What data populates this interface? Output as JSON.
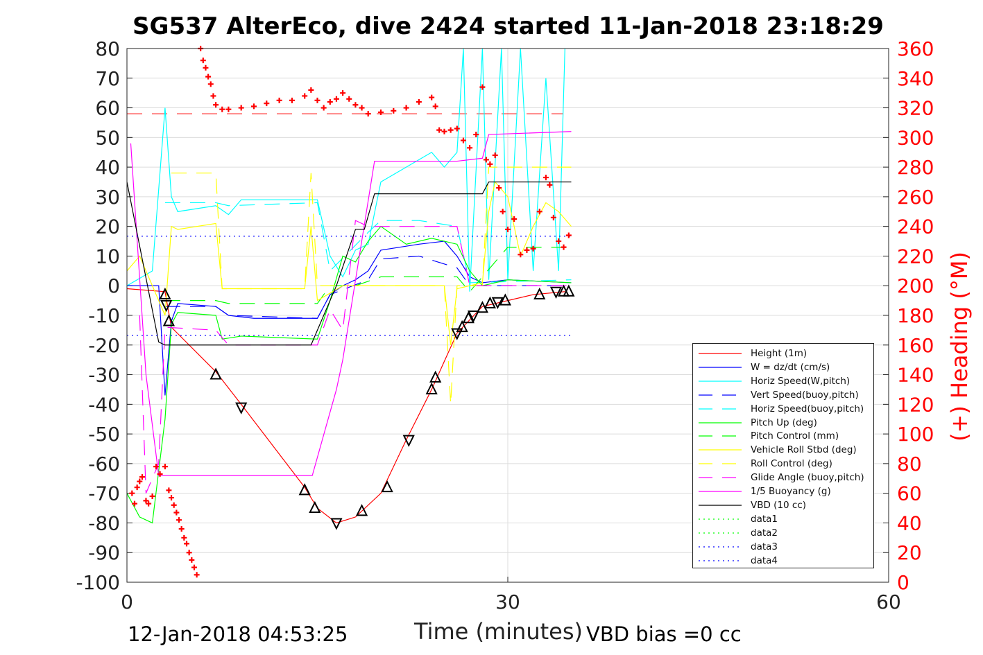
{
  "chart_data": {
    "type": "line",
    "title": "SG537 AlterEco, dive 2424 started 11-Jan-2018 23:18:29",
    "xlabel": "Time (minutes)",
    "ylabel_right": "(+) Heading (°M)",
    "footer_left": "12-Jan-2018 04:53:25",
    "footer_right": "VBD bias =0 cc",
    "xlim": [
      0,
      60
    ],
    "ylim": [
      -100,
      80
    ],
    "ylim_right": [
      0,
      360
    ],
    "xticks": [
      "0",
      "30",
      "60"
    ],
    "yticks": [
      "80",
      "70",
      "60",
      "50",
      "40",
      "30",
      "20",
      "10",
      "0",
      "-10",
      "-20",
      "-30",
      "-40",
      "-50",
      "-60",
      "-70",
      "-80",
      "-90",
      "-100"
    ],
    "yticks_right": [
      "360",
      "340",
      "320",
      "300",
      "280",
      "260",
      "240",
      "220",
      "200",
      "180",
      "160",
      "140",
      "120",
      "100",
      "80",
      "60",
      "40",
      "20",
      "0"
    ],
    "grid": true,
    "legend_position": "bottom-right",
    "series": [
      {
        "name": "Height (1m)",
        "color": "#ff0000",
        "style": "solid",
        "points": [
          [
            0,
            -1
          ],
          [
            3,
            -2
          ],
          [
            3.5,
            -14
          ],
          [
            7,
            -29
          ],
          [
            9,
            -40
          ],
          [
            14,
            -68
          ],
          [
            15,
            -75
          ],
          [
            16.5,
            -80
          ],
          [
            18,
            -78
          ],
          [
            20,
            -70
          ],
          [
            22,
            -52
          ],
          [
            24,
            -35
          ],
          [
            26,
            -16
          ],
          [
            28,
            -7
          ],
          [
            30,
            -5
          ],
          [
            32,
            -3
          ],
          [
            34.5,
            -2
          ]
        ]
      },
      {
        "name": "W = dz/dt (cm/s)",
        "color": "#0000ff",
        "style": "solid",
        "points": [
          [
            0,
            0
          ],
          [
            2.5,
            0
          ],
          [
            3,
            -37
          ],
          [
            3.5,
            -12
          ],
          [
            4,
            -6
          ],
          [
            7,
            -7
          ],
          [
            8,
            -10
          ],
          [
            10,
            -11
          ],
          [
            15,
            -11
          ],
          [
            16,
            -3
          ],
          [
            17,
            0
          ],
          [
            18,
            2
          ],
          [
            19,
            5
          ],
          [
            20,
            12
          ],
          [
            23,
            14
          ],
          [
            25,
            15
          ],
          [
            26,
            10
          ],
          [
            27,
            3
          ],
          [
            28,
            1
          ],
          [
            30,
            2
          ],
          [
            35,
            1
          ]
        ]
      },
      {
        "name": "Horiz Speed(W,pitch)",
        "color": "#00ffff",
        "style": "solid",
        "points": [
          [
            0,
            0
          ],
          [
            2,
            5
          ],
          [
            3,
            60
          ],
          [
            3.5,
            30
          ],
          [
            4,
            25
          ],
          [
            7,
            27
          ],
          [
            8,
            24
          ],
          [
            9,
            29
          ],
          [
            15,
            29
          ],
          [
            16,
            10
          ],
          [
            17,
            3
          ],
          [
            18,
            12
          ],
          [
            19,
            14
          ],
          [
            20,
            35
          ],
          [
            22,
            40
          ],
          [
            24,
            45
          ],
          [
            25,
            40
          ],
          [
            26,
            45
          ],
          [
            26.5,
            80
          ],
          [
            27,
            -2
          ],
          [
            28,
            80
          ],
          [
            28.5,
            2
          ],
          [
            29.5,
            80
          ],
          [
            30,
            2
          ],
          [
            31,
            80
          ],
          [
            32,
            5
          ],
          [
            33,
            70
          ],
          [
            34,
            5
          ],
          [
            34.5,
            80
          ]
        ]
      },
      {
        "name": "Vert Speed(buoy,pitch)",
        "color": "#0000ff",
        "style": "dash",
        "points": [
          [
            3,
            -7
          ],
          [
            7,
            -7
          ],
          [
            8,
            -10
          ],
          [
            15,
            -11
          ],
          [
            16,
            -3
          ],
          [
            19,
            2
          ],
          [
            20,
            9
          ],
          [
            23,
            10
          ],
          [
            26,
            6
          ],
          [
            27,
            0
          ],
          [
            35,
            0
          ]
        ]
      },
      {
        "name": "Horiz Speed(buoy,pitch)",
        "color": "#00ffff",
        "style": "dash",
        "points": [
          [
            3,
            28
          ],
          [
            7,
            28
          ],
          [
            8,
            27
          ],
          [
            15,
            28
          ],
          [
            16,
            5
          ],
          [
            19,
            18
          ],
          [
            20,
            22
          ],
          [
            23,
            22
          ],
          [
            26,
            20
          ],
          [
            27,
            1
          ],
          [
            35,
            2
          ]
        ]
      },
      {
        "name": "Pitch Up (deg)",
        "color": "#00ff00",
        "style": "solid",
        "points": [
          [
            0,
            -70
          ],
          [
            1,
            -78
          ],
          [
            2,
            -80
          ],
          [
            3,
            -45
          ],
          [
            3.5,
            -13
          ],
          [
            4,
            -9
          ],
          [
            7,
            -10
          ],
          [
            7.5,
            -18
          ],
          [
            9,
            -17
          ],
          [
            15,
            -18
          ],
          [
            16,
            -5
          ],
          [
            17,
            10
          ],
          [
            18,
            8
          ],
          [
            19,
            15
          ],
          [
            20,
            20
          ],
          [
            22,
            14
          ],
          [
            24,
            16
          ],
          [
            26,
            14
          ],
          [
            27,
            5
          ],
          [
            28,
            0
          ],
          [
            30,
            2
          ],
          [
            35,
            1
          ]
        ]
      },
      {
        "name": "Pitch Control (mm)",
        "color": "#00ff00",
        "style": "dash",
        "points": [
          [
            3,
            -5
          ],
          [
            7,
            -5
          ],
          [
            8,
            -6
          ],
          [
            15,
            -6
          ],
          [
            16,
            0
          ],
          [
            18,
            0
          ],
          [
            20,
            3
          ],
          [
            26,
            3
          ],
          [
            27,
            -2
          ],
          [
            30,
            13
          ],
          [
            35,
            13
          ]
        ]
      },
      {
        "name": "Vehicle Roll Stbd (deg)",
        "color": "#ffff00",
        "style": "solid",
        "points": [
          [
            0,
            5
          ],
          [
            1,
            10
          ],
          [
            3,
            -10
          ],
          [
            3.5,
            20
          ],
          [
            4,
            19
          ],
          [
            7,
            21
          ],
          [
            7.5,
            -1
          ],
          [
            14,
            -1
          ],
          [
            14.5,
            20
          ],
          [
            15,
            -5
          ],
          [
            17,
            0
          ],
          [
            19,
            0
          ],
          [
            25,
            0
          ],
          [
            25.5,
            -20
          ],
          [
            26,
            -1
          ],
          [
            28,
            1
          ],
          [
            28.5,
            25
          ],
          [
            29,
            35
          ],
          [
            30,
            30
          ],
          [
            31,
            10
          ],
          [
            32,
            20
          ],
          [
            33,
            28
          ],
          [
            34,
            25
          ],
          [
            35,
            20
          ]
        ]
      },
      {
        "name": "Roll Control (deg)",
        "color": "#ffff00",
        "style": "dash",
        "points": [
          [
            3.5,
            38
          ],
          [
            7,
            38
          ],
          [
            7.5,
            -1
          ],
          [
            14,
            -1
          ],
          [
            14.5,
            38
          ],
          [
            15,
            0
          ],
          [
            25,
            0
          ],
          [
            25.5,
            -40
          ],
          [
            26,
            0
          ],
          [
            28,
            0
          ],
          [
            28.5,
            40
          ],
          [
            35,
            40
          ]
        ]
      },
      {
        "name": "Glide Angle (buoy,pitch)",
        "color": "#ff00ff",
        "style": "dash",
        "points": [
          [
            1,
            -10
          ],
          [
            1.5,
            -70
          ],
          [
            2.5,
            -60
          ],
          [
            3,
            -14
          ],
          [
            7,
            -15
          ],
          [
            8,
            -20
          ],
          [
            15,
            -20
          ],
          [
            16,
            -8
          ],
          [
            17,
            -15
          ],
          [
            18,
            22
          ],
          [
            19,
            20
          ],
          [
            23,
            20
          ],
          [
            26,
            20
          ],
          [
            27,
            0
          ],
          [
            35,
            0
          ]
        ]
      },
      {
        "name": "1/5 Buoyancy (g)",
        "color": "#ff00ff",
        "style": "solid",
        "points": [
          [
            0.3,
            48
          ],
          [
            1.5,
            -30
          ],
          [
            2.5,
            -64
          ],
          [
            14.6,
            -64
          ],
          [
            16.5,
            -35
          ],
          [
            17,
            -25
          ],
          [
            19.5,
            42
          ],
          [
            24.5,
            42
          ],
          [
            26,
            42
          ],
          [
            28,
            43
          ],
          [
            28.5,
            51
          ],
          [
            35,
            52
          ]
        ]
      },
      {
        "name": "VBD (10 cc)",
        "color": "#000000",
        "style": "solid",
        "points": [
          [
            0,
            35
          ],
          [
            2.5,
            -19
          ],
          [
            3,
            -20
          ],
          [
            14.5,
            -20
          ],
          [
            16.5,
            0
          ],
          [
            18,
            19
          ],
          [
            18.7,
            19
          ],
          [
            19.5,
            31
          ],
          [
            28,
            31
          ],
          [
            28.5,
            35
          ],
          [
            35,
            35
          ]
        ]
      },
      {
        "name": "data1",
        "color": "#00ff00",
        "style": "dot",
        "points": []
      },
      {
        "name": "data2",
        "color": "#00ff00",
        "style": "dot",
        "points": []
      },
      {
        "name": "data3",
        "color": "#0000ff",
        "style": "dot",
        "points": [
          [
            0,
            16.7
          ],
          [
            35,
            16.7
          ]
        ]
      },
      {
        "name": "data4",
        "color": "#0000ff",
        "style": "dot",
        "points": [
          [
            0,
            -16.7
          ],
          [
            35,
            -16.7
          ]
        ]
      }
    ],
    "reference_line": {
      "color": "#ff0000",
      "value": 58
    },
    "height_markers": [
      [
        3,
        -3
      ],
      [
        3.1,
        -6.5
      ],
      [
        3.3,
        -12
      ],
      [
        7,
        -30
      ],
      [
        9,
        -41
      ],
      [
        14,
        -69
      ],
      [
        14.8,
        -75
      ],
      [
        16.5,
        -80
      ],
      [
        18.5,
        -76
      ],
      [
        20.5,
        -68
      ],
      [
        22.2,
        -52
      ],
      [
        24,
        -35
      ],
      [
        24.3,
        -31
      ],
      [
        26,
        -16
      ],
      [
        26.4,
        -14
      ],
      [
        26.9,
        -11
      ],
      [
        27.3,
        -10
      ],
      [
        28,
        -7.5
      ],
      [
        28.6,
        -6
      ],
      [
        29.2,
        -5.5
      ],
      [
        29.8,
        -5
      ],
      [
        32.5,
        -3
      ],
      [
        33.8,
        -2
      ],
      [
        34.4,
        -2
      ],
      [
        34.8,
        -2
      ]
    ],
    "heading": {
      "color": "#ff0000",
      "points": [
        [
          0.4,
          60
        ],
        [
          0.6,
          53
        ],
        [
          0.8,
          64
        ],
        [
          1,
          68
        ],
        [
          1.2,
          71
        ],
        [
          1.5,
          55
        ],
        [
          1.7,
          53
        ],
        [
          2,
          58
        ],
        [
          2.3,
          78
        ],
        [
          2.6,
          73
        ],
        [
          3,
          78
        ],
        [
          3.3,
          62
        ],
        [
          3.5,
          57
        ],
        [
          3.7,
          52
        ],
        [
          3.9,
          47
        ],
        [
          4.1,
          42
        ],
        [
          4.3,
          36
        ],
        [
          4.5,
          30
        ],
        [
          4.7,
          26
        ],
        [
          4.9,
          20
        ],
        [
          5.1,
          15
        ],
        [
          5.3,
          10
        ],
        [
          5.5,
          5
        ],
        [
          5.8,
          360
        ],
        [
          6,
          352
        ],
        [
          6.2,
          347
        ],
        [
          6.4,
          341
        ],
        [
          6.6,
          336
        ],
        [
          6.8,
          328
        ],
        [
          7,
          322
        ],
        [
          7.5,
          319
        ],
        [
          8,
          319
        ],
        [
          9,
          320
        ],
        [
          10,
          321
        ],
        [
          11,
          323
        ],
        [
          12,
          325
        ],
        [
          13,
          325
        ],
        [
          14,
          328
        ],
        [
          14.5,
          332
        ],
        [
          15,
          325
        ],
        [
          15.5,
          320
        ],
        [
          16,
          324
        ],
        [
          16.5,
          326
        ],
        [
          17,
          330
        ],
        [
          17.5,
          326
        ],
        [
          18,
          322
        ],
        [
          18.5,
          320
        ],
        [
          19,
          316
        ],
        [
          20,
          317
        ],
        [
          21,
          318
        ],
        [
          22,
          320
        ],
        [
          23,
          324
        ],
        [
          24,
          327
        ],
        [
          24.3,
          321
        ],
        [
          24.6,
          305
        ],
        [
          25,
          304
        ],
        [
          25.5,
          305
        ],
        [
          26,
          306
        ],
        [
          26.5,
          298
        ],
        [
          27,
          293
        ],
        [
          27.5,
          302
        ],
        [
          28,
          334
        ],
        [
          28.3,
          285
        ],
        [
          28.6,
          282
        ],
        [
          29,
          288
        ],
        [
          29.3,
          266
        ],
        [
          29.6,
          250
        ],
        [
          30,
          238
        ],
        [
          30.5,
          245
        ],
        [
          31,
          221
        ],
        [
          31.5,
          224
        ],
        [
          32,
          225
        ],
        [
          32.5,
          250
        ],
        [
          33,
          273
        ],
        [
          33.3,
          268
        ],
        [
          33.6,
          246
        ],
        [
          34,
          230
        ],
        [
          34.4,
          226
        ],
        [
          34.8,
          234
        ]
      ]
    }
  }
}
